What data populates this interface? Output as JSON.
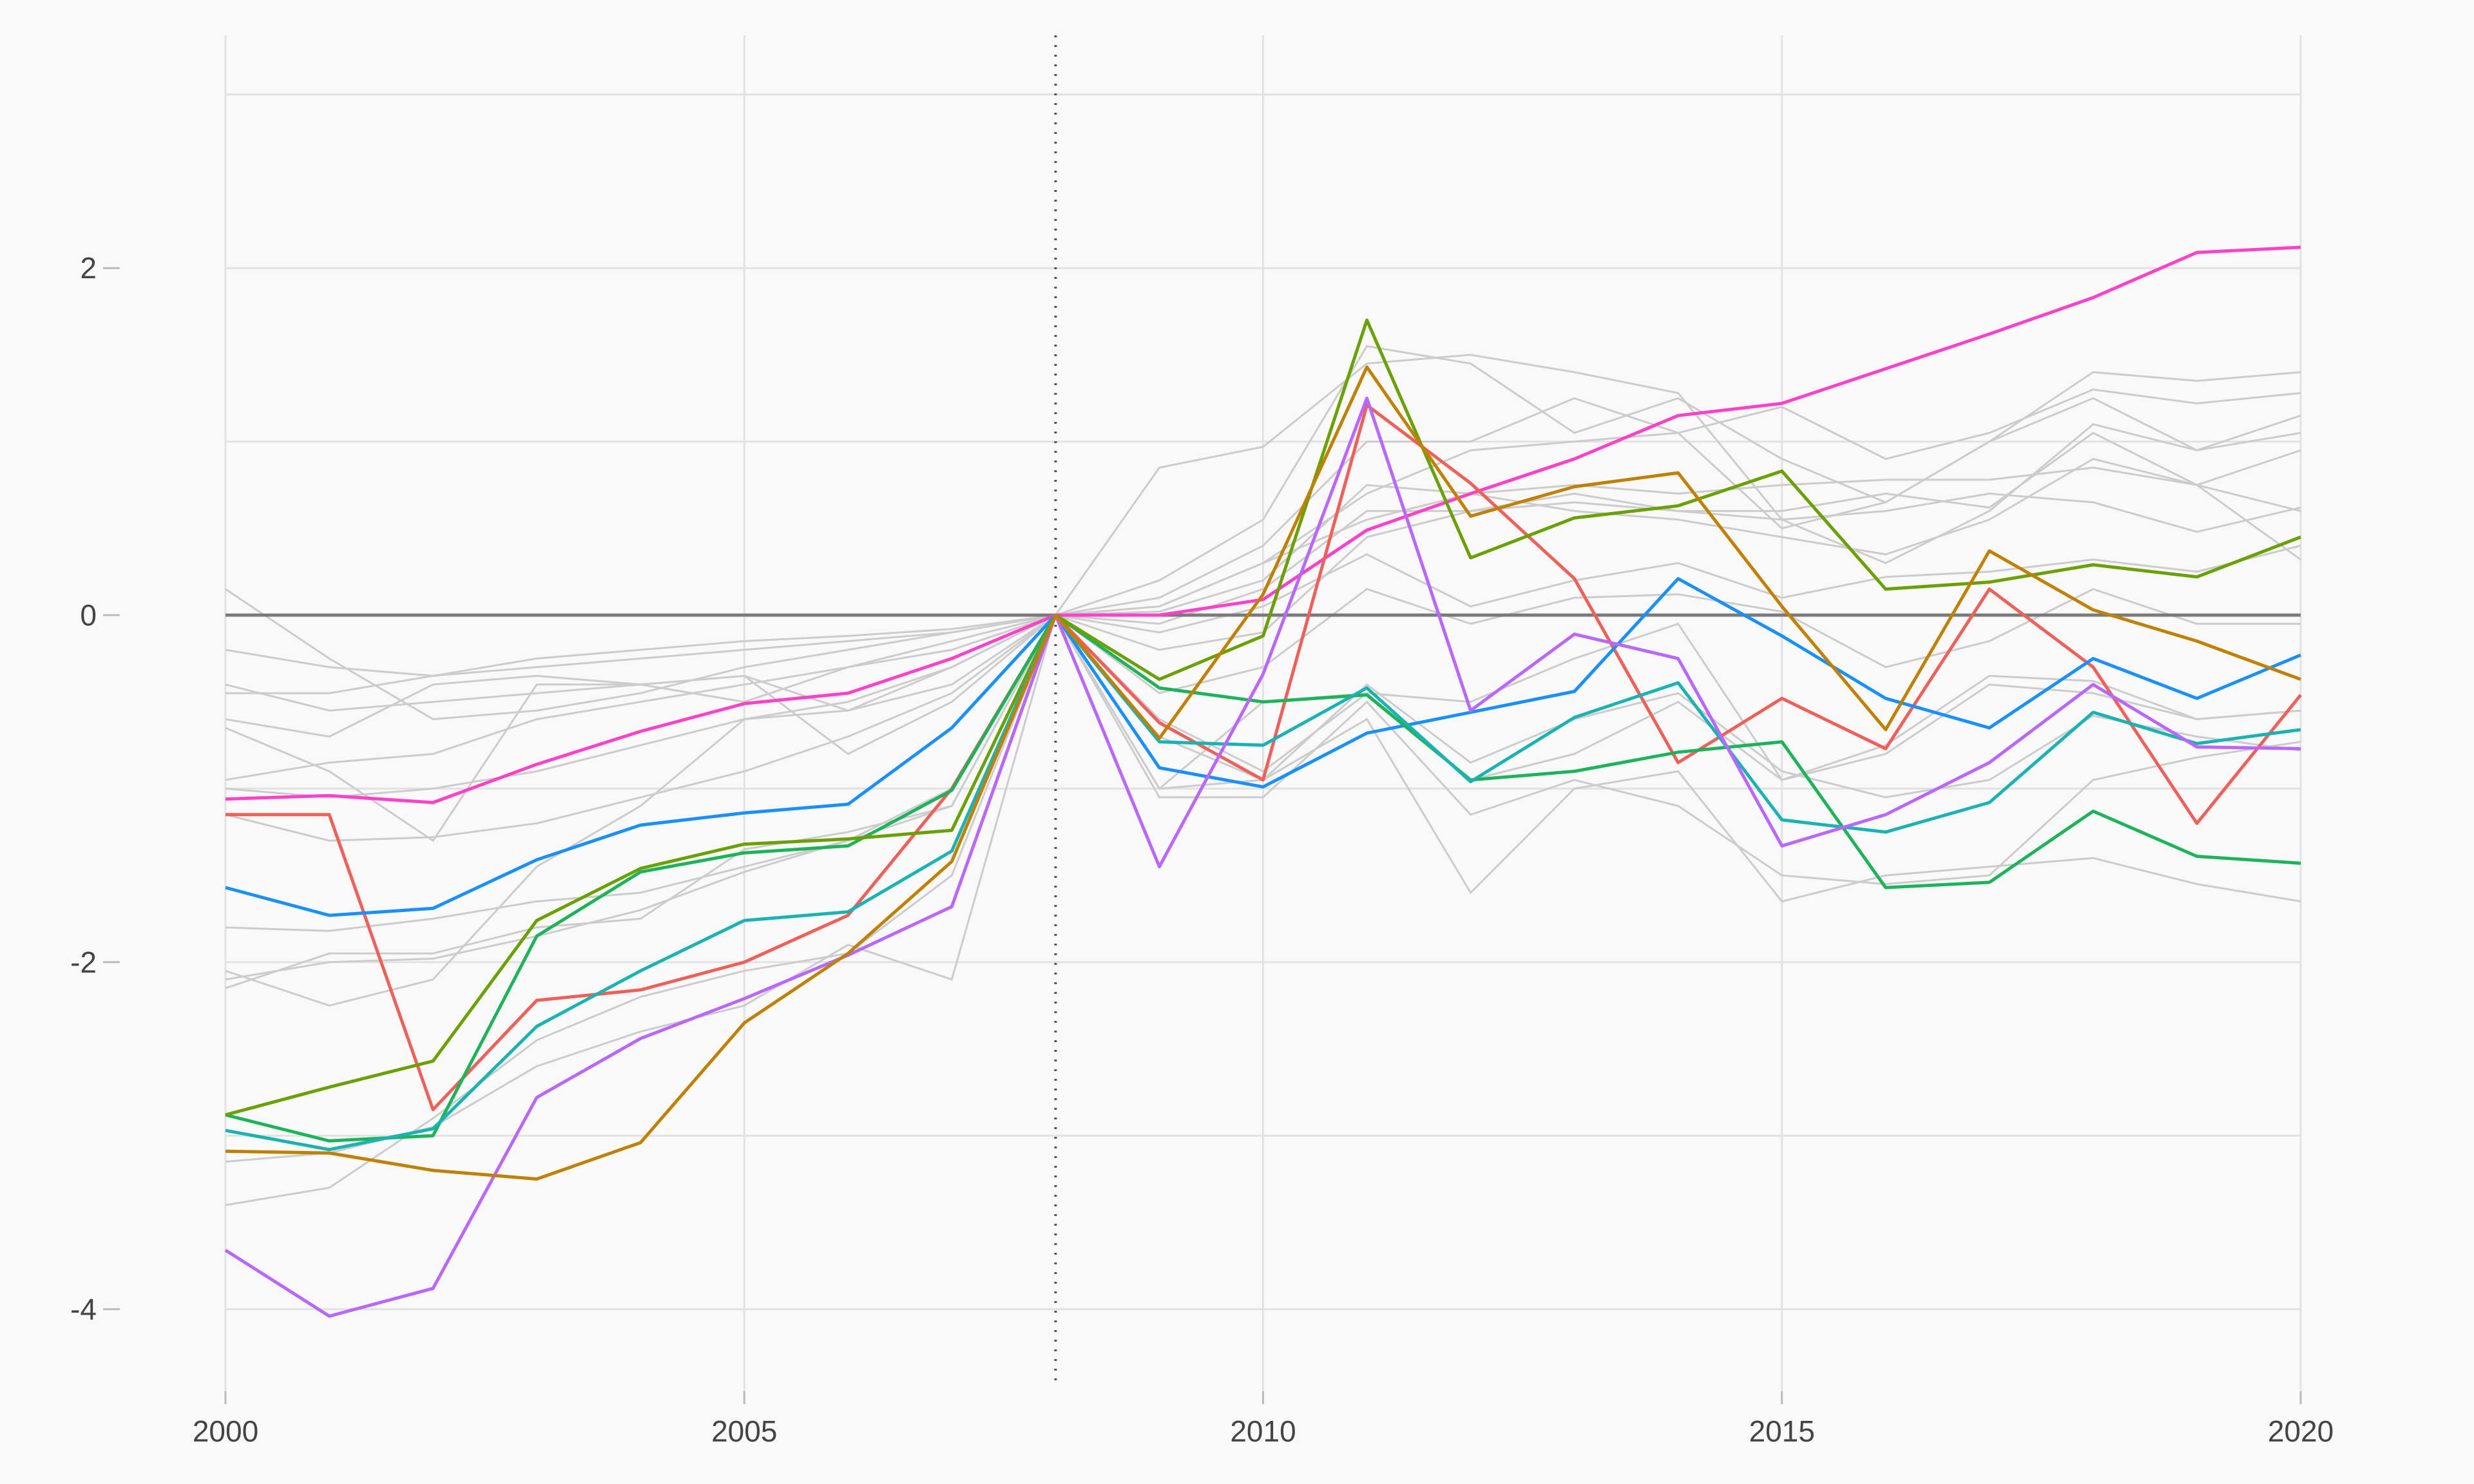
{
  "chart_data": {
    "type": "line",
    "title": "",
    "xlabel": "",
    "ylabel": "",
    "xlim": [
      2000,
      2020
    ],
    "ylim": [
      -4.5,
      3.0
    ],
    "x_ticks": [
      "2000",
      "2005",
      "2010",
      "2015",
      "2020"
    ],
    "y_ticks": [
      "2",
      "0",
      "-2",
      "-4"
    ],
    "y_tick_values": [
      2,
      0,
      -2,
      -4
    ],
    "x_tick_values": [
      2000,
      2005,
      2010,
      2015,
      2020
    ],
    "grid": true,
    "reference_line": {
      "x": 2008,
      "style": "dotted"
    },
    "zero_line": {
      "y": 0
    },
    "x": [
      2000,
      2001,
      2002,
      2003,
      2004,
      2005,
      2006,
      2007,
      2008,
      2009,
      2010,
      2011,
      2012,
      2013,
      2014,
      2015,
      2016,
      2017,
      2018,
      2019,
      2020
    ],
    "highlight_series": [
      {
        "color": "#ff40c8",
        "values": [
          -1.06,
          -1.04,
          -1.08,
          -0.86,
          -0.67,
          -0.51,
          -0.45,
          -0.25,
          0,
          0,
          0.09,
          0.49,
          0.7,
          0.9,
          1.15,
          1.22,
          1.42,
          1.62,
          1.83,
          2.09,
          2.12
        ]
      },
      {
        "color": "#f0605a",
        "values": [
          -1.15,
          -1.15,
          -2.85,
          -2.22,
          -2.16,
          -2.0,
          -1.73,
          -1.0,
          0,
          -0.62,
          -0.95,
          1.21,
          0.76,
          0.21,
          -0.85,
          -0.48,
          -0.77,
          0.15,
          -0.3,
          -1.2,
          -0.46
        ]
      },
      {
        "color": "#1a90ff",
        "values": [
          -1.57,
          -1.73,
          -1.69,
          -1.41,
          -1.21,
          -1.14,
          -1.09,
          -0.65,
          0,
          -0.88,
          -0.99,
          -0.68,
          -0.56,
          -0.44,
          0.21,
          -0.12,
          -0.48,
          -0.65,
          -0.25,
          -0.48,
          -0.23
        ]
      },
      {
        "color": "#1cb35a",
        "values": [
          -2.88,
          -3.03,
          -3.0,
          -1.85,
          -1.48,
          -1.37,
          -1.33,
          -1.01,
          0,
          -0.42,
          -0.5,
          -0.46,
          -0.95,
          -0.9,
          -0.79,
          -0.73,
          -1.57,
          -1.54,
          -1.13,
          -1.39,
          -1.43
        ]
      },
      {
        "color": "#6aa000",
        "values": [
          -2.88,
          -2.72,
          -2.57,
          -1.76,
          -1.46,
          -1.32,
          -1.29,
          -1.24,
          0,
          -0.37,
          -0.12,
          1.7,
          0.33,
          0.56,
          0.63,
          0.83,
          0.15,
          0.19,
          0.29,
          0.22,
          0.45
        ]
      },
      {
        "color": "#1ab3b3",
        "values": [
          -2.97,
          -3.08,
          -2.96,
          -2.37,
          -2.05,
          -1.76,
          -1.71,
          -1.36,
          0,
          -0.73,
          -0.75,
          -0.42,
          -0.96,
          -0.59,
          -0.39,
          -1.18,
          -1.25,
          -1.08,
          -0.56,
          -0.74,
          -0.66
        ]
      },
      {
        "color": "#b967ff",
        "values": [
          -3.66,
          -4.04,
          -3.88,
          -2.78,
          -2.44,
          -2.21,
          -1.96,
          -1.68,
          0,
          -1.45,
          -0.34,
          1.25,
          -0.55,
          -0.11,
          -0.25,
          -1.33,
          -1.15,
          -0.85,
          -0.4,
          -0.76,
          -0.77
        ]
      },
      {
        "color": "#c08000",
        "values": [
          -3.09,
          -3.1,
          -3.2,
          -3.25,
          -3.04,
          -2.35,
          -1.95,
          -1.42,
          0,
          -0.71,
          0.12,
          1.43,
          0.57,
          0.74,
          0.82,
          0.05,
          -0.66,
          0.37,
          0.03,
          -0.15,
          -0.37
        ]
      }
    ],
    "background_series_color": "#cccccc",
    "background_series": [
      [
        0.15,
        -0.25,
        -0.6,
        -0.55,
        -0.45,
        -0.3,
        -0.2,
        -0.1,
        0,
        0.85,
        0.97,
        1.45,
        1.5,
        1.4,
        1.28,
        0.55,
        0.3,
        0.6,
        1.1,
        0.95,
        1.15
      ],
      [
        -0.2,
        -0.3,
        -0.35,
        -0.25,
        -0.2,
        -0.15,
        -0.12,
        -0.08,
        0,
        0.2,
        0.55,
        1.55,
        1.45,
        1.05,
        1.25,
        0.9,
        0.65,
        1.0,
        1.4,
        1.35,
        1.4
      ],
      [
        -0.45,
        -0.45,
        -0.35,
        -0.3,
        -0.25,
        -0.2,
        -0.15,
        -0.1,
        0,
        0.1,
        0.4,
        1.0,
        1.0,
        1.25,
        1.05,
        1.2,
        0.9,
        1.05,
        1.3,
        1.22,
        1.28
      ],
      [
        -0.6,
        -0.7,
        -0.4,
        -0.35,
        -0.4,
        -0.5,
        -0.3,
        -0.15,
        0,
        0.05,
        0.3,
        0.7,
        0.95,
        1.0,
        1.05,
        0.5,
        0.65,
        1.0,
        1.25,
        0.95,
        1.05
      ],
      [
        -0.95,
        -0.85,
        -0.8,
        -0.6,
        -0.5,
        -0.4,
        -0.3,
        -0.2,
        0,
        0.02,
        0.2,
        0.75,
        0.7,
        0.75,
        0.7,
        0.75,
        0.78,
        0.78,
        0.85,
        0.75,
        0.95
      ],
      [
        -1.0,
        -1.05,
        -1.0,
        -0.9,
        -0.75,
        -0.6,
        -0.5,
        -0.3,
        0,
        -0.05,
        0.15,
        0.6,
        0.6,
        0.65,
        0.6,
        0.55,
        0.6,
        0.7,
        0.65,
        0.48,
        0.62
      ],
      [
        -1.15,
        -1.3,
        -1.28,
        -1.2,
        -1.05,
        -0.9,
        -0.7,
        -0.45,
        0,
        -0.2,
        -0.1,
        0.45,
        0.6,
        0.7,
        0.6,
        0.6,
        0.7,
        0.62,
        1.05,
        0.75,
        0.6
      ],
      [
        -1.8,
        -1.82,
        -1.75,
        -1.65,
        -1.6,
        -1.45,
        -1.3,
        -1.1,
        0,
        0.05,
        0.3,
        0.55,
        0.7,
        0.6,
        0.55,
        0.45,
        0.35,
        0.55,
        0.9,
        0.75,
        0.32
      ],
      [
        -2.05,
        -2.25,
        -2.1,
        -1.45,
        -1.1,
        -0.6,
        -0.55,
        -0.3,
        0,
        -0.1,
        0.05,
        0.35,
        0.05,
        0.2,
        0.3,
        0.1,
        0.22,
        0.25,
        0.32,
        0.25,
        0.4
      ],
      [
        -2.15,
        -1.95,
        -1.95,
        -1.8,
        -1.75,
        -1.35,
        -1.25,
        -1.1,
        0,
        -0.45,
        -0.3,
        0.15,
        -0.05,
        0.1,
        0.12,
        0.02,
        -0.3,
        -0.15,
        0.15,
        -0.05,
        -0.05
      ],
      [
        -2.1,
        -2.0,
        -1.98,
        -1.85,
        -1.7,
        -1.48,
        -1.3,
        -1.0,
        0,
        -0.6,
        -0.9,
        -0.45,
        -0.95,
        -0.8,
        -0.5,
        -0.95,
        -0.75,
        -0.35,
        -0.38,
        -0.6,
        -0.55
      ],
      [
        -3.15,
        -3.1,
        -2.95,
        -2.6,
        -2.4,
        -2.25,
        -1.9,
        -2.1,
        0,
        -1.0,
        -0.95,
        -0.4,
        -0.85,
        -0.6,
        -0.45,
        -0.9,
        -1.05,
        -0.95,
        -0.58,
        -0.7,
        -0.78
      ],
      [
        -3.4,
        -3.3,
        -2.9,
        -2.45,
        -2.2,
        -2.05,
        -1.95,
        -1.5,
        0,
        -1.05,
        -1.05,
        -0.5,
        -1.15,
        -0.95,
        -1.1,
        -1.5,
        -1.55,
        -1.5,
        -0.95,
        -0.82,
        -0.73
      ],
      [
        -0.4,
        -0.55,
        -0.5,
        -0.45,
        -0.4,
        -0.35,
        -0.55,
        -0.4,
        0,
        -0.7,
        -0.95,
        -0.6,
        -1.6,
        -1.0,
        -0.9,
        -1.65,
        -1.5,
        -1.45,
        -1.4,
        -1.55,
        -1.65
      ],
      [
        -0.65,
        -0.9,
        -1.3,
        -0.4,
        -0.4,
        -0.35,
        -0.8,
        -0.5,
        0,
        -1.0,
        -0.5,
        -0.45,
        -0.5,
        -0.25,
        -0.05,
        -0.95,
        -0.8,
        -0.4,
        -0.45,
        -0.6,
        -0.55
      ]
    ]
  }
}
